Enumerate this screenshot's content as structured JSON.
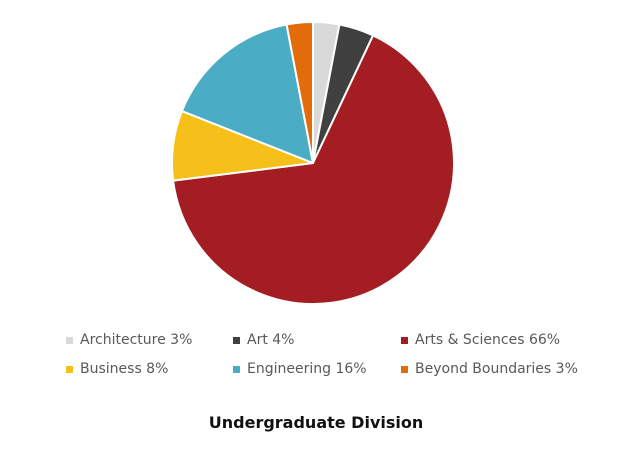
{
  "chart_data": {
    "type": "pie",
    "title": "Undergraduate Division",
    "legend_position": "bottom",
    "start_angle_deg": 0,
    "direction": "clockwise",
    "slices": [
      {
        "label": "Architecture 3%",
        "value": 3,
        "color": "#d9d9d9"
      },
      {
        "label": "Art 4%",
        "value": 4,
        "color": "#404040"
      },
      {
        "label": "Arts & Sciences 66%",
        "value": 66,
        "color": "#a31d22"
      },
      {
        "label": "Business 8%",
        "value": 8,
        "color": "#f5c01a"
      },
      {
        "label": "Engineering 16%",
        "value": 16,
        "color": "#4bacc6"
      },
      {
        "label": "Beyond Boundaries 3%",
        "value": 3,
        "color": "#e36c0a"
      }
    ]
  }
}
